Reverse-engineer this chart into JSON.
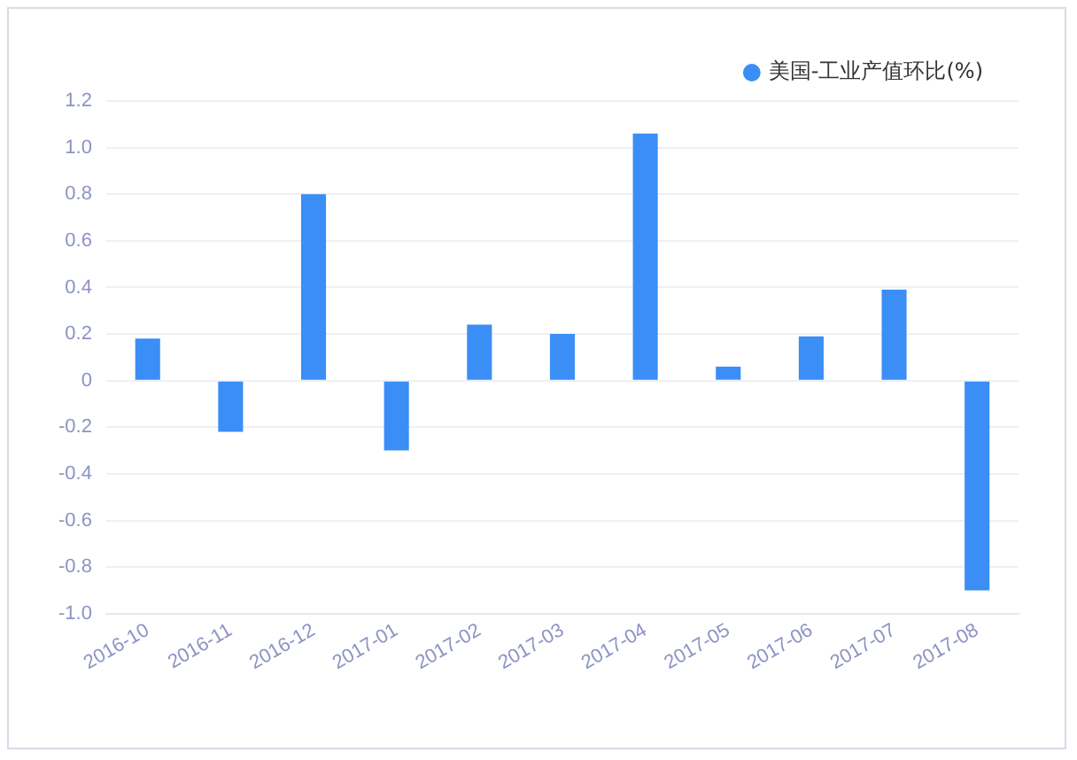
{
  "chart_data": {
    "type": "bar",
    "categories": [
      "2016-10",
      "2016-11",
      "2016-12",
      "2017-01",
      "2017-02",
      "2017-03",
      "2017-04",
      "2017-05",
      "2017-06",
      "2017-07",
      "2017-08"
    ],
    "series": [
      {
        "name": "美国-工业产值环比(%)",
        "color": "#3a8ef6",
        "values": [
          0.18,
          -0.22,
          0.8,
          -0.3,
          0.24,
          0.2,
          1.06,
          0.06,
          0.19,
          0.39,
          -0.9
        ]
      }
    ],
    "ylim": [
      -1.0,
      1.2
    ],
    "yticks": [
      {
        "value": -1.0,
        "label": "-1.0"
      },
      {
        "value": -0.8,
        "label": "-0.8"
      },
      {
        "value": -0.6,
        "label": "-0.6"
      },
      {
        "value": -0.4,
        "label": "-0.4"
      },
      {
        "value": -0.2,
        "label": "-0.2"
      },
      0,
      {
        "value": 0.2,
        "label": "0.2"
      },
      {
        "value": 0.4,
        "label": "0.4"
      },
      {
        "value": 0.6,
        "label": "0.6"
      },
      {
        "value": 0.8,
        "label": "0.8"
      },
      {
        "value": 1.0,
        "label": "1.0"
      },
      {
        "value": 1.2,
        "label": "1.2"
      }
    ],
    "grid": "y",
    "legend": "top right"
  }
}
